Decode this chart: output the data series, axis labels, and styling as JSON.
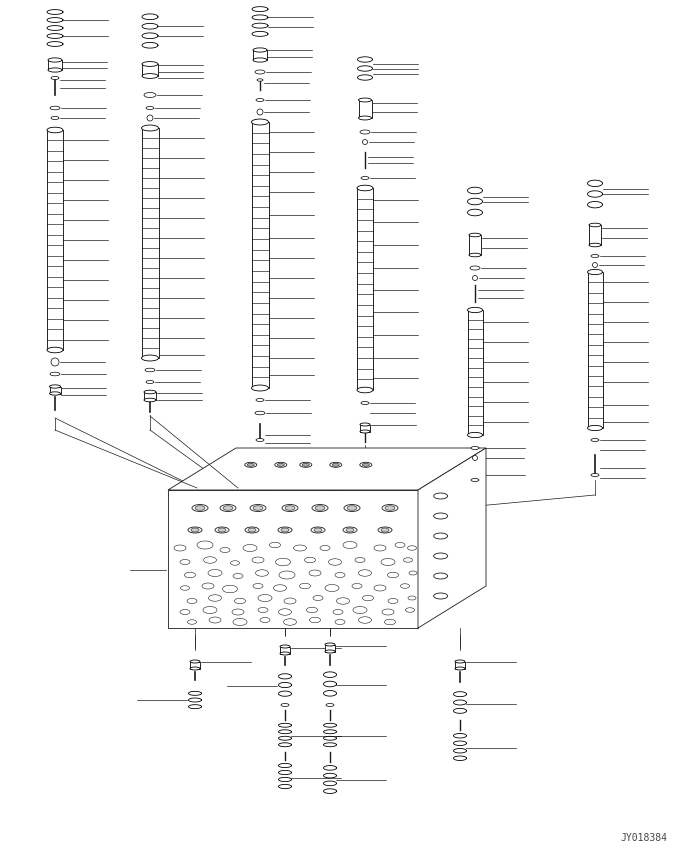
{
  "bg_color": "#ffffff",
  "line_color": "#1a1a1a",
  "fig_width": 6.89,
  "fig_height": 8.56,
  "dpi": 100,
  "watermark": "JY018384"
}
